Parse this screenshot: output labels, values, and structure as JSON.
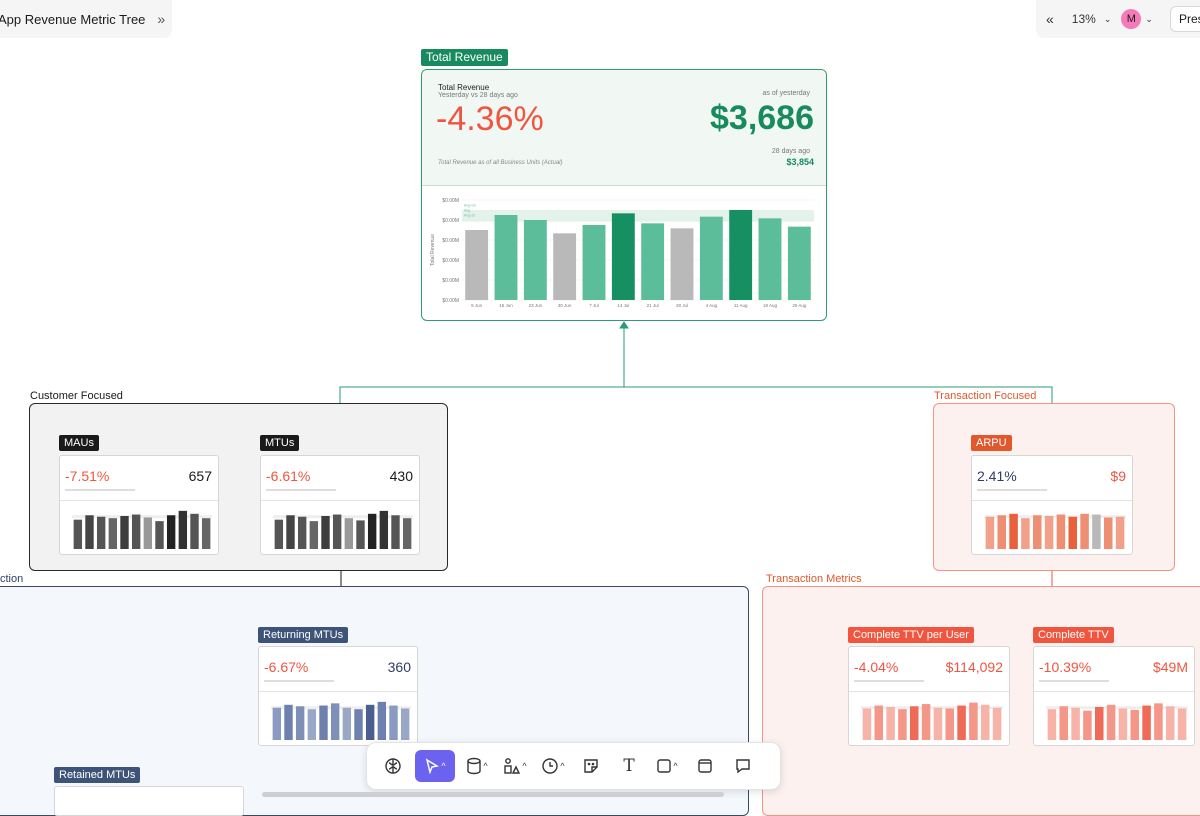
{
  "header": {
    "title": "App Revenue Metric Tree",
    "zoom": "13%",
    "avatar_initial": "M",
    "present_label": "Pres"
  },
  "colors": {
    "green": "#188a5f",
    "red": "#f0553f",
    "navy": "#2c3e66",
    "dark": "#1a1a1a",
    "orange": "#e0582c"
  },
  "total_revenue": {
    "tag": "Total Revenue",
    "label": "Total Revenue",
    "subtitle": "Yesterday vs 28 days ago",
    "change": "-4.36%",
    "as_of": "as of yesterday",
    "value": "$3,686",
    "ago_label": "28 days ago",
    "ago_value": "$3,854",
    "footnote": "Total Revenue as of all Business Units (Actual)",
    "chart_data": {
      "type": "bar",
      "categories": [
        "9 Jun",
        "16 Jun",
        "23 Jun",
        "30 Jun",
        "7 Jul",
        "14 Jul",
        "21 Jul",
        "28 Jul",
        "4 Aug",
        "11 Aug",
        "18 Aug",
        "25 Aug"
      ],
      "values": [
        0.0042,
        0.0051,
        0.0048,
        0.004,
        0.0045,
        0.0052,
        0.0046,
        0.0043,
        0.005,
        0.0054,
        0.0049,
        0.0044
      ],
      "ytick_labels": [
        "$0.00M",
        "$0.00M",
        "$0.00M",
        "$0.00M",
        "$0.00M",
        "$0.00M"
      ],
      "ylabel": "Total Revenue",
      "ylim": [
        0,
        0.006
      ],
      "band_labels": [
        "Avg+2σ",
        "Avg",
        "Avg-2σ"
      ]
    }
  },
  "groups": {
    "customer_focused": "Customer Focused",
    "transaction_focused": "Transaction Focused",
    "left_partial": "ction",
    "transaction_metrics": "Transaction Metrics"
  },
  "cards": {
    "maus": {
      "tag": "MAUs",
      "change": "-7.51%",
      "value": "657",
      "values": [
        40,
        46,
        44,
        42,
        45,
        47,
        43,
        38,
        46,
        52,
        48,
        42
      ]
    },
    "mtus": {
      "tag": "MTUs",
      "change": "-6.61%",
      "value": "430",
      "values": [
        40,
        46,
        44,
        38,
        45,
        47,
        42,
        39,
        48,
        52,
        46,
        42
      ]
    },
    "arpu": {
      "tag": "ARPU",
      "change": "2.41%",
      "value": "$9",
      "values": [
        44,
        46,
        48,
        42,
        46,
        45,
        47,
        44,
        48,
        47,
        43,
        44
      ]
    },
    "returning_mtus": {
      "tag": "Returning MTUs",
      "change": "-6.67%",
      "value": "360",
      "values": [
        44,
        48,
        46,
        42,
        47,
        50,
        44,
        42,
        48,
        52,
        47,
        43
      ]
    },
    "complete_ttv_per_user": {
      "tag": "Complete TTV per User",
      "change": "-4.04%",
      "value": "$114,092",
      "values": [
        43,
        47,
        45,
        42,
        46,
        49,
        44,
        43,
        47,
        51,
        48,
        44
      ]
    },
    "complete_ttv": {
      "tag": "Complete TTV",
      "change": "-10.39%",
      "value": "$49M",
      "values": [
        42,
        46,
        44,
        40,
        45,
        48,
        43,
        41,
        47,
        50,
        46,
        43
      ]
    },
    "retained_mtus": {
      "tag": "Retained MTUs"
    }
  },
  "toolbar": [
    "brain-icon",
    "pointer-icon",
    "database-icon",
    "shapes-icon",
    "clock-icon",
    "sticker-icon",
    "text-icon",
    "rectangle-icon",
    "frame-icon",
    "comment-icon"
  ]
}
